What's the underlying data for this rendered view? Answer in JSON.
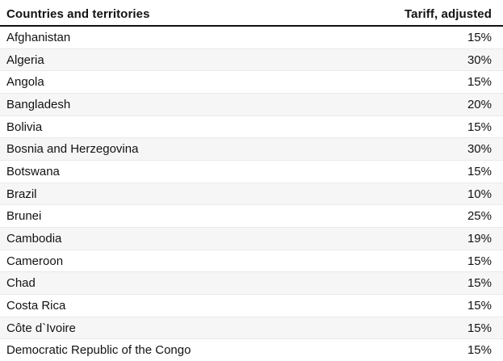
{
  "chart_data": {
    "type": "table",
    "columns": [
      "Countries and territories",
      "Tariff, adjusted"
    ],
    "rows": [
      [
        "Afghanistan",
        "15%"
      ],
      [
        "Algeria",
        "30%"
      ],
      [
        "Angola",
        "15%"
      ],
      [
        "Bangladesh",
        "20%"
      ],
      [
        "Bolivia",
        "15%"
      ],
      [
        "Bosnia and Herzegovina",
        "30%"
      ],
      [
        "Botswana",
        "15%"
      ],
      [
        "Brazil",
        "10%"
      ],
      [
        "Brunei",
        "25%"
      ],
      [
        "Cambodia",
        "19%"
      ],
      [
        "Cameroon",
        "15%"
      ],
      [
        "Chad",
        "15%"
      ],
      [
        "Costa Rica",
        "15%"
      ],
      [
        "Côte d`Ivoire",
        "15%"
      ],
      [
        "Democratic Republic of the Congo",
        "15%"
      ]
    ],
    "layout": {
      "zebra_striping": true,
      "header_rule": true,
      "value_alignment": "right"
    }
  },
  "colors": {
    "text": "#121212",
    "header_rule": "#121212",
    "zebra_stripe": "#f6f6f6",
    "row_divider": "#e9e9e9",
    "background": "#ffffff"
  }
}
